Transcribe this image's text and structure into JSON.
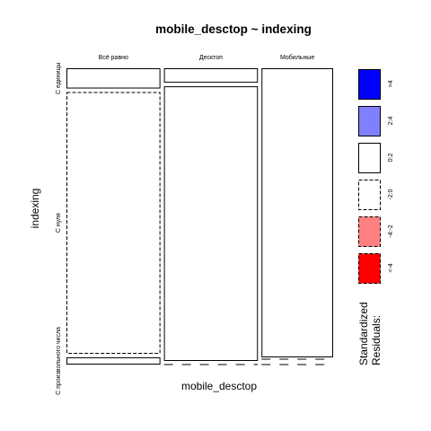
{
  "chart_data": {
    "type": "mosaic",
    "title": "mobile_desctop ~ indexing",
    "xlabel": "mobile_desctop",
    "ylabel": "indexing",
    "x_categories": [
      "Всё равно",
      "Десктоп",
      "Мобильные"
    ],
    "y_categories": [
      "С единицы",
      "С нуля",
      "С произвольного числа"
    ],
    "column_shares": [
      0.362,
      0.362,
      0.276
    ],
    "cells": [
      [
        {
          "share": 0.07,
          "residual_band": "0:2"
        },
        {
          "share": 0.905,
          "residual_band": "-2:0"
        },
        {
          "share": 0.025,
          "residual_band": "0:2"
        }
      ],
      [
        {
          "share": 0.05,
          "residual_band": "0:2"
        },
        {
          "share": 0.95,
          "residual_band": "0:2"
        },
        {
          "share": 0.0,
          "residual_band": "-2:0"
        }
      ],
      [
        {
          "share": 1.0,
          "residual_band": "0:2"
        },
        {
          "share": 0.0,
          "residual_band": "-2:0"
        },
        {
          "share": 0.0,
          "residual_band": "-2:0"
        }
      ]
    ],
    "legend": {
      "title_lines": [
        "Standardized",
        "Residuals:"
      ],
      "placement": "right",
      "bands": [
        {
          "label": ">4",
          "fill": "#0000ff",
          "dashed": false
        },
        {
          "label": "2:4",
          "fill": "#8080ff",
          "dashed": false
        },
        {
          "label": "0:2",
          "fill": "#ffffff",
          "dashed": false
        },
        {
          "label": "-2:0",
          "fill": "#ffffff",
          "dashed": true
        },
        {
          "label": "-4:-2",
          "fill": "#ff8080",
          "dashed": true
        },
        {
          "label": "<-4",
          "fill": "#ff0000",
          "dashed": true
        }
      ]
    }
  }
}
